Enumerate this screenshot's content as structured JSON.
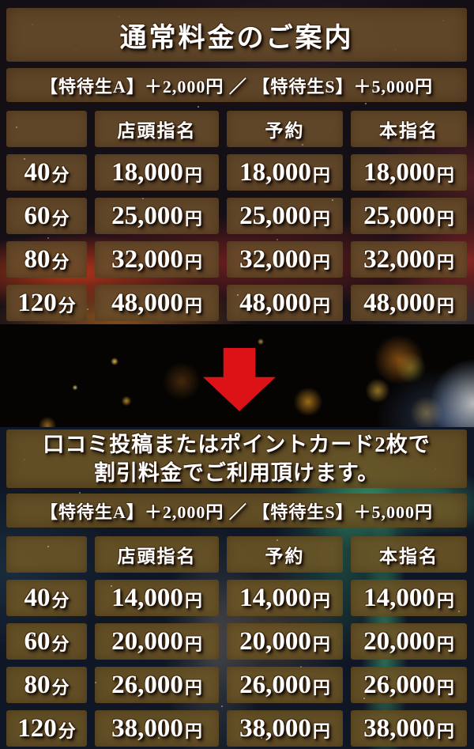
{
  "colors": {
    "panel_brown": "rgba(104,76,42,0.9)",
    "panel_brown2": "rgba(110,86,38,0.88)",
    "arrow_red": "#dd1217",
    "text_white": "#ffffff"
  },
  "regular": {
    "title": "通常料金のご案内",
    "note": "【特待生A】＋2,000円 ／ 【特待生S】＋5,000円",
    "table": {
      "columns": [
        "店頭指名",
        "予約",
        "本指名"
      ],
      "time_unit": "分",
      "price_unit": "円",
      "rows": [
        {
          "duration": "40",
          "prices": [
            "18,000",
            "18,000",
            "18,000"
          ]
        },
        {
          "duration": "60",
          "prices": [
            "25,000",
            "25,000",
            "25,000"
          ]
        },
        {
          "duration": "80",
          "prices": [
            "32,000",
            "32,000",
            "32,000"
          ]
        },
        {
          "duration": "120",
          "prices": [
            "48,000",
            "48,000",
            "48,000"
          ]
        }
      ]
    }
  },
  "arrow": {
    "icon": "down-arrow",
    "color": "#dd1217"
  },
  "discount": {
    "title_line1": "口コミ投稿またはポイントカード2枚で",
    "title_line2": "割引料金でご利用頂けます。",
    "note": "【特待生A】＋2,000円 ／ 【特待生S】＋5,000円",
    "table": {
      "columns": [
        "店頭指名",
        "予約",
        "本指名"
      ],
      "time_unit": "分",
      "price_unit": "円",
      "rows": [
        {
          "duration": "40",
          "prices": [
            "14,000",
            "14,000",
            "14,000"
          ]
        },
        {
          "duration": "60",
          "prices": [
            "20,000",
            "20,000",
            "20,000"
          ]
        },
        {
          "duration": "80",
          "prices": [
            "26,000",
            "26,000",
            "26,000"
          ]
        },
        {
          "duration": "120",
          "prices": [
            "38,000",
            "38,000",
            "38,000"
          ]
        }
      ]
    }
  }
}
